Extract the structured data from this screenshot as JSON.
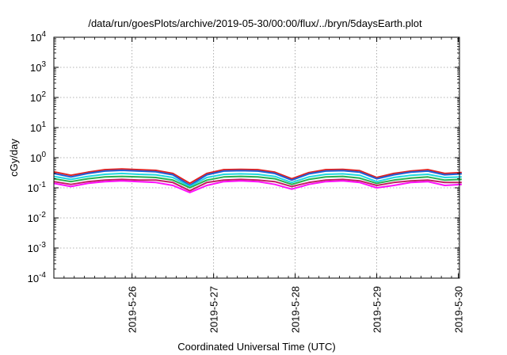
{
  "chart_data": {
    "type": "line",
    "title": "/data/run/goesPlots/archive/2019-05-30/00:00/flux/../bryn/5daysEarth.plot",
    "xlabel": "Coordinated Universal Time (UTC)",
    "ylabel": "cGy/day",
    "yscale": "log",
    "ylim": [
      0.0001,
      10000
    ],
    "y_ticks": [
      {
        "value": 0.0001,
        "base": "10",
        "exp": "-4"
      },
      {
        "value": 0.001,
        "base": "10",
        "exp": "-3"
      },
      {
        "value": 0.01,
        "base": "10",
        "exp": "-2"
      },
      {
        "value": 0.1,
        "base": "10",
        "exp": "-1"
      },
      {
        "value": 1,
        "base": "10",
        "exp": "0"
      },
      {
        "value": 10,
        "base": "10",
        "exp": "1"
      },
      {
        "value": 100,
        "base": "10",
        "exp": "2"
      },
      {
        "value": 1000,
        "base": "10",
        "exp": "3"
      },
      {
        "value": 10000,
        "base": "10",
        "exp": "4"
      }
    ],
    "xlim": [
      "2019-05-25T01:00",
      "2019-05-30T00:20"
    ],
    "x_ticks": [
      "2019-5-26",
      "2019-5-27",
      "2019-5-28",
      "2019-5-29",
      "2019-5-30"
    ],
    "grid": true,
    "sample_hours": [
      0,
      5,
      10,
      15,
      20,
      25,
      30,
      35,
      40,
      45,
      50,
      55,
      60,
      65,
      70,
      75,
      80,
      85,
      90,
      95,
      100,
      105,
      110,
      115,
      120
    ],
    "series": [
      {
        "color": "#e02020",
        "values": [
          0.34,
          0.26,
          0.33,
          0.4,
          0.42,
          0.4,
          0.38,
          0.3,
          0.14,
          0.3,
          0.4,
          0.41,
          0.4,
          0.33,
          0.2,
          0.32,
          0.4,
          0.41,
          0.37,
          0.22,
          0.3,
          0.36,
          0.4,
          0.3,
          0.32
        ]
      },
      {
        "color": "#1e5fd8",
        "values": [
          0.3,
          0.23,
          0.3,
          0.36,
          0.38,
          0.36,
          0.34,
          0.27,
          0.12,
          0.27,
          0.36,
          0.37,
          0.36,
          0.3,
          0.18,
          0.29,
          0.36,
          0.37,
          0.33,
          0.2,
          0.27,
          0.33,
          0.36,
          0.27,
          0.29
        ]
      },
      {
        "color": "#20d8e0",
        "values": [
          0.24,
          0.19,
          0.24,
          0.28,
          0.3,
          0.28,
          0.27,
          0.22,
          0.11,
          0.22,
          0.28,
          0.29,
          0.28,
          0.24,
          0.15,
          0.23,
          0.28,
          0.29,
          0.26,
          0.16,
          0.22,
          0.26,
          0.28,
          0.22,
          0.23
        ]
      },
      {
        "color": "#28b050",
        "values": [
          0.2,
          0.16,
          0.2,
          0.23,
          0.24,
          0.23,
          0.22,
          0.18,
          0.1,
          0.18,
          0.23,
          0.24,
          0.23,
          0.2,
          0.13,
          0.19,
          0.23,
          0.24,
          0.21,
          0.14,
          0.18,
          0.21,
          0.23,
          0.18,
          0.19
        ]
      },
      {
        "color": "#c02060",
        "values": [
          0.16,
          0.13,
          0.16,
          0.18,
          0.19,
          0.18,
          0.18,
          0.15,
          0.08,
          0.15,
          0.18,
          0.19,
          0.18,
          0.16,
          0.11,
          0.15,
          0.18,
          0.19,
          0.17,
          0.12,
          0.15,
          0.17,
          0.18,
          0.15,
          0.15
        ]
      },
      {
        "color": "#ff10ff",
        "values": [
          0.14,
          0.11,
          0.14,
          0.16,
          0.17,
          0.16,
          0.15,
          0.12,
          0.07,
          0.12,
          0.16,
          0.17,
          0.16,
          0.13,
          0.09,
          0.13,
          0.16,
          0.17,
          0.15,
          0.1,
          0.12,
          0.15,
          0.16,
          0.12,
          0.13
        ]
      }
    ]
  }
}
